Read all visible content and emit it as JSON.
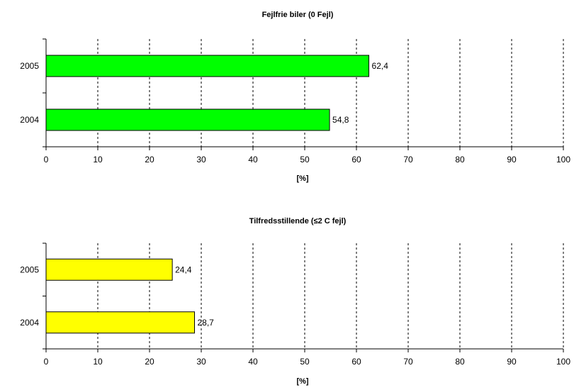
{
  "chart_data": [
    {
      "type": "bar",
      "orientation": "horizontal",
      "title": "Fejlfrie biler (0 Fejl)",
      "xlabel": "[%]",
      "ylabel": "",
      "categories": [
        "2005",
        "2004"
      ],
      "values": [
        62.4,
        54.8
      ],
      "value_labels": [
        "62,4",
        "54,8"
      ],
      "xlim": [
        0,
        100
      ],
      "xticks": [
        0,
        10,
        20,
        30,
        40,
        50,
        60,
        70,
        80,
        90,
        100
      ],
      "grid": "vertical dashed",
      "bar_color": "#00ff00"
    },
    {
      "type": "bar",
      "orientation": "horizontal",
      "title": "Tilfredsstillende (≤2 C fejl)",
      "xlabel": "[%]",
      "ylabel": "",
      "categories": [
        "2005",
        "2004"
      ],
      "values": [
        24.4,
        28.7
      ],
      "value_labels": [
        "24,4",
        "28,7"
      ],
      "xlim": [
        0,
        100
      ],
      "xticks": [
        0,
        10,
        20,
        30,
        40,
        50,
        60,
        70,
        80,
        90,
        100
      ],
      "grid": "vertical dashed",
      "bar_color": "#ffff00"
    }
  ]
}
